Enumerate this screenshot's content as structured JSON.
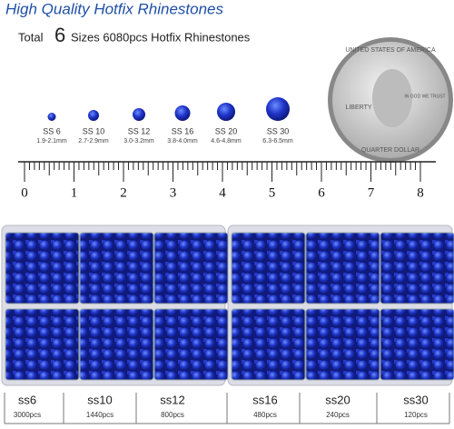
{
  "header": {
    "title": "High Quality Hotfix Rhinestones",
    "total_prefix": "Total",
    "total_number": "6",
    "total_suffix": "Sizes 6080pcs Hotfix Rhinestones"
  },
  "sizes": [
    {
      "name": "SS 6",
      "range": "1.9-2.1mm"
    },
    {
      "name": "SS 10",
      "range": "2.7-2.9mm"
    },
    {
      "name": "SS 12",
      "range": "3.0-3.2mm"
    },
    {
      "name": "SS 16",
      "range": "3.8-4.0mm"
    },
    {
      "name": "SS 20",
      "range": "4.6-4.8mm"
    },
    {
      "name": "SS 30",
      "range": "6.3-6.5mm"
    }
  ],
  "coin": {
    "top": "UNITED STATES OF AMERICA",
    "liberty": "LIBERTY",
    "motto": "IN GOD WE TRUST",
    "bottom": "QUARTER DOLLAR"
  },
  "ruler": [
    "0",
    "1",
    "2",
    "3",
    "4",
    "5",
    "6",
    "7",
    "8"
  ],
  "compartments": [
    {
      "name": "ss6",
      "count": "3000pcs"
    },
    {
      "name": "ss10",
      "count": "1440pcs"
    },
    {
      "name": "ss12",
      "count": "800pcs"
    },
    {
      "name": "ss16",
      "count": "480pcs"
    },
    {
      "name": "ss20",
      "count": "240pcs"
    },
    {
      "name": "ss30",
      "count": "120pcs"
    }
  ]
}
